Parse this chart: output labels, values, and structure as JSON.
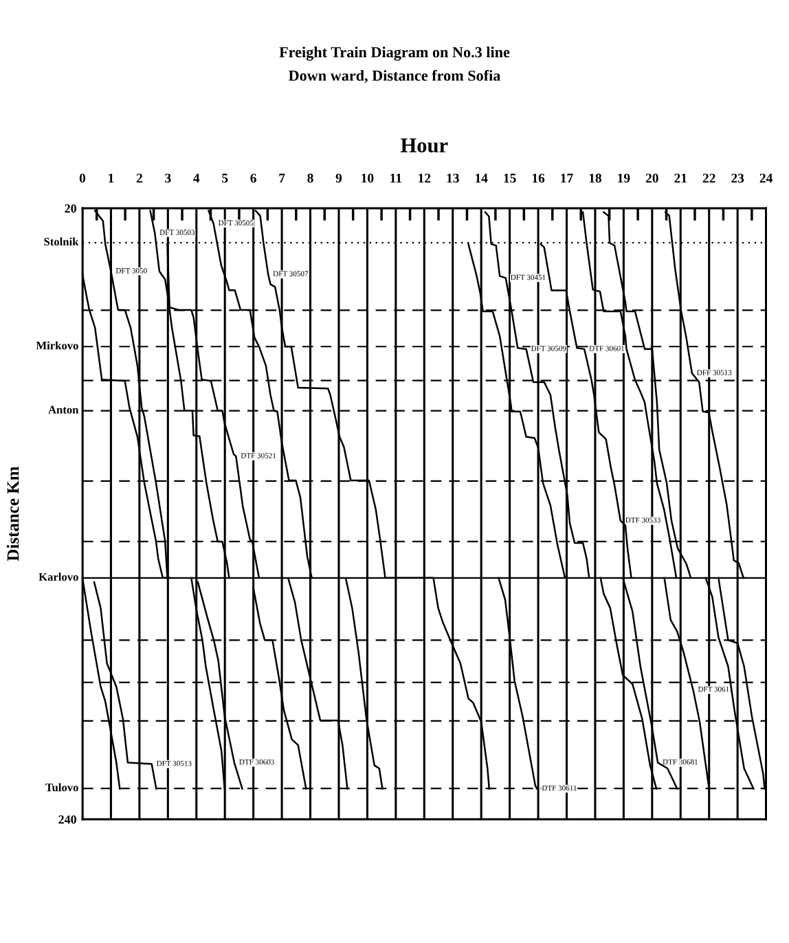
{
  "chart_data": {
    "type": "line",
    "title": "Freight Train Diagram on No.3 line",
    "subtitle": "Down ward, Distance from Sofia",
    "xlabel": "Hour",
    "ylabel": "Distance Km",
    "xlim": [
      0,
      24
    ],
    "ylim": [
      240,
      20
    ],
    "xticks": [
      0,
      1,
      2,
      3,
      4,
      5,
      6,
      7,
      8,
      9,
      10,
      11,
      12,
      13,
      14,
      15,
      16,
      17,
      18,
      19,
      20,
      21,
      22,
      23,
      24
    ],
    "yticks": [
      20,
      240
    ],
    "grid": "x",
    "marker": "none",
    "line_style": "solid",
    "legend": false,
    "ref_lines": [
      {
        "axis": "y",
        "value": 32.4,
        "label": "Stolnik",
        "line_style": "dotted"
      },
      {
        "axis": "y",
        "value": 56.7,
        "line_style": "dashed"
      },
      {
        "axis": "y",
        "value": 69.8,
        "label": "Mirkovo",
        "line_style": "dashed"
      },
      {
        "axis": "y",
        "value": 82,
        "line_style": "dashed"
      },
      {
        "axis": "y",
        "value": 92.9,
        "label": "Anton",
        "line_style": "dashed"
      },
      {
        "axis": "y",
        "value": 118.2,
        "line_style": "dashed"
      },
      {
        "axis": "y",
        "value": 140,
        "line_style": "dashed"
      },
      {
        "axis": "y",
        "value": 153.1,
        "label": "Karlovo",
        "line_style": "solid"
      },
      {
        "axis": "y",
        "value": 175.5,
        "line_style": "dashed"
      },
      {
        "axis": "y",
        "value": 190.7,
        "line_style": "dashed"
      },
      {
        "axis": "y",
        "value": 204.6,
        "line_style": "dashed"
      },
      {
        "axis": "y",
        "value": 228.9,
        "label": "Tulovo",
        "line_style": "dashed"
      }
    ],
    "annotations": [
      {
        "text": "DFT 3050",
        "x": 1.0,
        "y": 42.7
      },
      {
        "text": "DFT 30503",
        "x": 2.54,
        "y": 28.9
      },
      {
        "text": "DFT 30505",
        "x": 4.6,
        "y": 25.5
      },
      {
        "text": "DFT 30507",
        "x": 6.52,
        "y": 43.8
      },
      {
        "text": "DFT 30451",
        "x": 14.86,
        "y": 45.1
      },
      {
        "text": "DFT 30509",
        "x": 15.58,
        "y": 70.7
      },
      {
        "text": "DTF 30601",
        "x": 17.62,
        "y": 70.7
      },
      {
        "text": "DFF 30513",
        "x": 21.4,
        "y": 79.4
      },
      {
        "text": "DTF 30521",
        "x": 5.39,
        "y": 109.3
      },
      {
        "text": "DTF 30533",
        "x": 18.89,
        "y": 132.5
      },
      {
        "text": "DFT 30513",
        "x": 2.43,
        "y": 220.1
      },
      {
        "text": "DTF 30603",
        "x": 5.33,
        "y": 219.6
      },
      {
        "text": "DTF 30611",
        "x": 15.96,
        "y": 229
      },
      {
        "text": "DTF 30681",
        "x": 20.2,
        "y": 219.6
      },
      {
        "text": "DFT 30611",
        "x": 21.44,
        "y": 193.4
      }
    ],
    "series": [
      {
        "color": "#000000",
        "x": [
          0.44,
          0.72,
          0.8,
          1.0,
          1.25,
          1.49,
          1.69,
          1.93,
          2.08,
          2.17,
          2.58,
          2.9,
          2.98
        ],
        "values": [
          20.9,
          24.6,
          32.8,
          42.7,
          56.6,
          56.6,
          63,
          76.7,
          91.8,
          94.9,
          118.8,
          139.8,
          153.1
        ]
      },
      {
        "color": "#000000",
        "x": [
          0,
          0.15,
          0.24,
          0.44,
          0.68,
          1.49,
          1.65,
          1.93,
          2.17,
          2.58,
          2.66,
          2.82,
          3.06
        ],
        "values": [
          43.8,
          52,
          56.6,
          63,
          81.7,
          82.2,
          91.8,
          102.3,
          118.8,
          139.8,
          146.2,
          153.1,
          153.1
        ]
      },
      {
        "color": "#000000",
        "x": [
          2.38,
          2.54,
          2.7,
          2.9,
          3.06,
          3.38,
          3.82,
          3.9,
          4.03,
          4.19,
          4.51,
          4.75,
          4.91,
          4.99,
          5.31,
          5.39,
          5.63,
          5.88,
          5.96,
          6.2
        ],
        "values": [
          20.9,
          28.9,
          42.7,
          45.6,
          55.7,
          56.6,
          56.6,
          59.3,
          69.8,
          81.7,
          82.2,
          92.9,
          92.9,
          97.4,
          108.6,
          109.3,
          127.4,
          139.2,
          140,
          153.1
        ]
      },
      {
        "color": "#000000",
        "x": [
          2.98,
          3.06,
          3.14,
          3.46,
          3.58,
          3.86,
          3.9,
          4.11,
          4.35,
          4.59,
          4.75,
          4.91,
          5.07,
          5.15
        ],
        "values": [
          32.8,
          56.6,
          63,
          82.2,
          92.9,
          92.9,
          101.8,
          102.1,
          118.8,
          132.4,
          140,
          140,
          147.5,
          153.1
        ]
      },
      {
        "color": "#000000",
        "x": [
          4.43,
          4.6,
          4.87,
          5.07,
          5.15,
          5.35,
          5.55,
          5.88,
          6.04,
          6.2,
          6.44,
          6.6,
          6.72,
          6.84,
          7.0,
          7.25,
          7.49,
          7.65,
          7.89,
          8.05
        ],
        "values": [
          20.9,
          25.5,
          40.5,
          46.5,
          49.5,
          49.5,
          56.6,
          56.6,
          66.6,
          69.8,
          76.7,
          87.2,
          92.9,
          93.2,
          104.5,
          118,
          118,
          124.1,
          145.2,
          153.1
        ]
      },
      {
        "color": "#000000",
        "x": [
          6.08,
          6.24,
          6.36,
          6.52,
          6.6,
          6.76,
          6.92,
          7.0,
          7.12,
          7.33,
          7.57,
          8.62,
          8.7,
          8.9,
          9.02,
          9.18,
          9.42,
          10.06,
          10.3,
          10.46,
          10.63,
          11.03,
          12.32,
          12.49,
          12.66,
          12.94,
          13.27,
          13.55,
          13.72,
          14.0,
          14.22,
          14.28
        ],
        "values": [
          20.9,
          22.7,
          32.8,
          43.8,
          47.4,
          48.3,
          56.6,
          63,
          69.8,
          69.8,
          84.6,
          84.9,
          87.2,
          96.3,
          102.1,
          106,
          118,
          118,
          128.5,
          140,
          153.1,
          153.1,
          153.1,
          164,
          169.3,
          176.1,
          183.9,
          196.5,
          198.1,
          204.9,
          221.7,
          229
        ]
      },
      {
        "color": "#000000",
        "x": [
          13.55,
          13.84,
          13.97,
          14.06,
          14.4,
          14.65,
          15.03,
          15.07,
          15.37,
          15.58,
          15.87,
          16.0,
          16.17,
          16.43,
          16.68,
          16.94
        ],
        "values": [
          32.9,
          44.4,
          50.8,
          57.1,
          57.1,
          66,
          89.9,
          93.2,
          93.2,
          102.3,
          102.7,
          106.2,
          119,
          127,
          141.3,
          153.1
        ]
      },
      {
        "color": "#000000",
        "x": [
          14.14,
          14.27,
          14.35,
          14.52,
          14.65,
          14.86,
          15.07,
          15.28,
          15.58,
          15.83,
          16.21,
          16.43,
          16.6,
          16.73,
          17.02,
          17.11,
          17.28,
          17.57,
          17.7,
          17.79
        ],
        "values": [
          21.4,
          22.9,
          32.9,
          33.4,
          44.4,
          45.1,
          57.1,
          70.3,
          70.7,
          82.6,
          82.6,
          87.2,
          99.2,
          107.1,
          123.1,
          133.4,
          140.5,
          140.5,
          146.1,
          153.1
        ]
      },
      {
        "color": "#000000",
        "x": [
          16.09,
          16.21,
          16.47,
          16.98,
          17.11,
          17.36,
          17.62,
          17.87,
          17.96,
          18.13,
          18.3,
          18.38,
          18.55,
          18.68,
          18.89,
          19.06,
          19.14,
          19.27
        ],
        "values": [
          32.9,
          34.1,
          49.6,
          49.6,
          57.1,
          70.3,
          70.7,
          81.8,
          87.2,
          100.7,
          102.3,
          103.2,
          113.3,
          119.7,
          132.5,
          134.1,
          142.9,
          153.1
        ]
      },
      {
        "color": "#000000",
        "x": [
          17.57,
          17.7,
          17.92,
          18.17,
          18.3,
          18.89,
          19.06,
          19.1,
          19.4,
          19.6,
          19.74,
          19.82,
          20.08,
          20.17,
          20.42,
          20.6,
          20.85
        ],
        "values": [
          21.4,
          32.5,
          49.3,
          50,
          57.1,
          57.1,
          66,
          70.7,
          81.8,
          86.4,
          89.9,
          95.2,
          111.1,
          119,
          128.5,
          138.1,
          153.1
        ]
      },
      {
        "color": "#000000",
        "x": [
          18.3,
          18.47,
          18.51,
          18.68,
          19.06,
          19.1,
          19.4,
          19.74,
          20.0,
          20.17,
          20.25,
          20.51,
          20.68,
          20.9,
          21.2,
          21.36
        ],
        "values": [
          21.4,
          22.7,
          32.5,
          33.4,
          53.8,
          57.1,
          57.1,
          70.7,
          70.7,
          89.9,
          106.9,
          118.8,
          132.5,
          142.5,
          148,
          153.1
        ]
      },
      {
        "color": "#000000",
        "x": [
          20.47,
          20.6,
          20.81,
          21.02,
          21.19,
          21.4,
          21.65,
          21.78,
          21.99,
          22.12,
          22.37,
          22.62,
          22.87,
          23.04,
          23.21
        ],
        "values": [
          21.4,
          22.7,
          42,
          57.1,
          66,
          79.4,
          82.6,
          93.2,
          93.5,
          100.7,
          113.3,
          126.8,
          146.8,
          147.7,
          153.1
        ]
      },
      {
        "color": "#000000",
        "x": [
          0,
          0.3,
          0.64,
          0.8,
          0.97,
          1.19,
          1.31
        ],
        "values": [
          153.1,
          172.4,
          192.3,
          197.5,
          207,
          219.6,
          229
        ]
      },
      {
        "color": "#000000",
        "x": [
          0.41,
          0.64,
          0.86,
          1.19,
          1.42,
          1.59,
          2.43,
          2.59
        ],
        "values": [
          154.6,
          164,
          183.9,
          192.3,
          203.8,
          219.6,
          220.1,
          229
        ]
      },
      {
        "color": "#000000",
        "x": [
          3.82,
          3.99,
          4.21,
          4.33,
          4.61,
          4.88,
          4.99
        ],
        "values": [
          153.1,
          164,
          175.5,
          185,
          200.7,
          215.4,
          229
        ]
      },
      {
        "color": "#000000",
        "x": [
          4.05,
          4.38,
          4.61,
          4.77,
          4.99,
          5.33,
          5.61
        ],
        "values": [
          154.6,
          167.2,
          175.5,
          182.9,
          202.8,
          219.6,
          229
        ]
      },
      {
        "color": "#000000",
        "x": [
          6.0,
          6.23,
          6.4,
          6.67,
          6.9,
          7.07,
          7.35,
          7.57,
          7.85
        ],
        "values": [
          156.7,
          169.3,
          175.5,
          175.5,
          189.2,
          200.7,
          211.2,
          213.3,
          229
        ]
      },
      {
        "color": "#000000",
        "x": [
          7.23,
          7.46,
          7.68,
          8.02,
          8.35,
          8.97,
          9.13,
          9.3
        ],
        "values": [
          153.5,
          161.9,
          175.5,
          190.2,
          204.4,
          204.4,
          213.3,
          229
        ]
      },
      {
        "color": "#000000",
        "x": [
          9.25,
          9.47,
          9.69,
          9.97,
          10.25,
          10.42,
          10.53
        ],
        "values": [
          153.5,
          164,
          179.7,
          203.8,
          220.6,
          221.7,
          229
        ]
      },
      {
        "color": "#000000",
        "x": [
          14.61,
          14.84,
          15.0,
          15.17,
          15.45,
          15.9,
          15.96
        ],
        "values": [
          153.1,
          160.9,
          174.5,
          190.2,
          202.8,
          227.9,
          229
        ]
      },
      {
        "color": "#000000",
        "x": [
          18.19,
          18.3,
          18.53,
          18.75,
          18.97,
          19.31,
          19.65,
          19.93,
          20.15
        ],
        "values": [
          153.1,
          158.8,
          164,
          176.6,
          188.1,
          191.3,
          203.8,
          220.6,
          229
        ]
      },
      {
        "color": "#000000",
        "x": [
          18.97,
          19.31,
          19.59,
          19.98,
          20.2,
          20.54,
          20.88
        ],
        "values": [
          153.1,
          165.1,
          185,
          206,
          219.6,
          221.7,
          229
        ]
      },
      {
        "color": "#000000",
        "x": [
          20.43,
          20.65,
          20.88,
          21.1,
          21.44,
          21.67,
          22.0
        ],
        "values": [
          153.1,
          168.2,
          172.4,
          179.7,
          193.4,
          204.9,
          229
        ]
      },
      {
        "color": "#000000",
        "x": [
          21.88,
          22.11,
          22.33,
          22.67,
          22.89,
          23.23,
          23.56
        ],
        "values": [
          153.1,
          159.8,
          174.5,
          185,
          200.7,
          221.7,
          229
        ]
      },
      {
        "color": "#000000",
        "x": [
          22.33,
          22.67,
          23.0,
          23.23,
          23.5,
          23.9,
          23.95
        ],
        "values": [
          153.1,
          175.5,
          176.6,
          185,
          202.8,
          223.7,
          229
        ]
      }
    ]
  }
}
